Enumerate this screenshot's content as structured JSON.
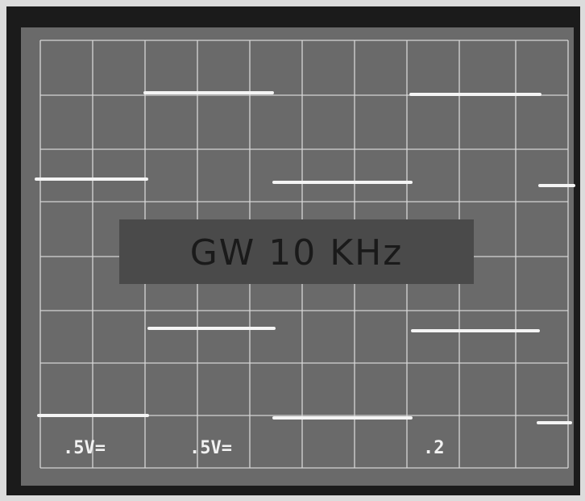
{
  "label": "GW 10 KHz",
  "readouts": [
    ".5V=",
    ".5V=",
    ".2"
  ]
}
